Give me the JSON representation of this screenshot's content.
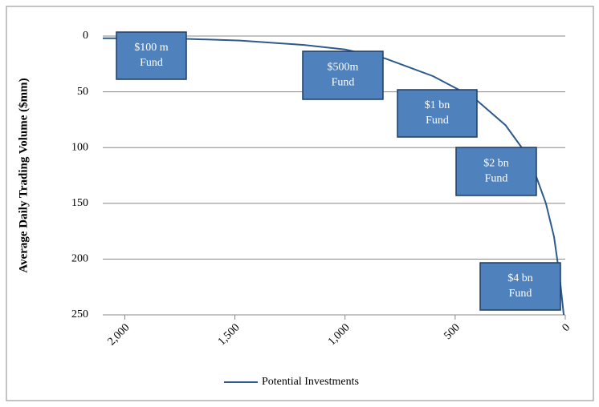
{
  "chart_data": {
    "type": "line",
    "y_label": "Average Daily Trading Volume ($mm)",
    "x": [
      2100,
      1806,
      1477,
      1185,
      1000,
      819,
      600,
      417,
      271,
      161,
      88,
      51,
      26,
      7
    ],
    "series": [
      {
        "name": "Potential Investments",
        "color": "#2e5a8c",
        "values": [
          2,
          2,
          4,
          8,
          12,
          20,
          36,
          55,
          80,
          110,
          150,
          180,
          215,
          250
        ]
      }
    ],
    "xlim": [
      2100,
      0
    ],
    "ylim": [
      0,
      250
    ],
    "xticks": [
      {
        "value": 2000,
        "label": "2,000"
      },
      {
        "value": 1500,
        "label": "1,500"
      },
      {
        "value": 1000,
        "label": "1,000"
      },
      500,
      0
    ],
    "yticks": [
      0,
      50,
      100,
      150,
      200,
      250
    ],
    "grid": true,
    "legend": "bottom",
    "annotations": [
      [
        "$100 m",
        "Fund"
      ],
      [
        "$500m",
        "Fund"
      ],
      [
        "$1 bn",
        "Fund"
      ],
      [
        "$2 bn",
        "Fund"
      ],
      [
        "$4 bn",
        "Fund"
      ]
    ]
  }
}
